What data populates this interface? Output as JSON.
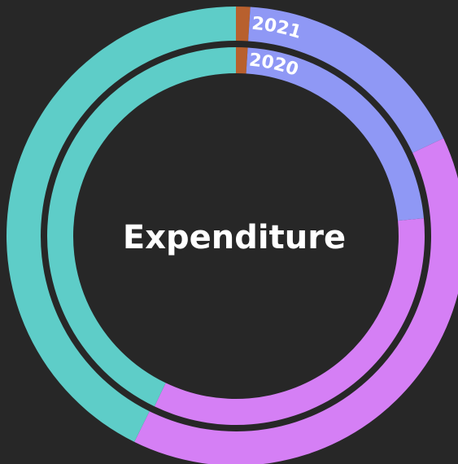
{
  "chart_data": {
    "type": "donut",
    "title": "Expenditure",
    "categories": [
      null,
      null,
      null,
      null
    ],
    "colors": [
      "#b8602e",
      "#8f98f5",
      "#d57ff5",
      "#5ecdc8"
    ],
    "series": [
      {
        "name": "2021",
        "values": [
          1,
          17,
          39.3,
          42.7
        ]
      },
      {
        "name": "2020",
        "values": [
          1,
          22.5,
          33.6,
          42.9
        ]
      }
    ]
  }
}
